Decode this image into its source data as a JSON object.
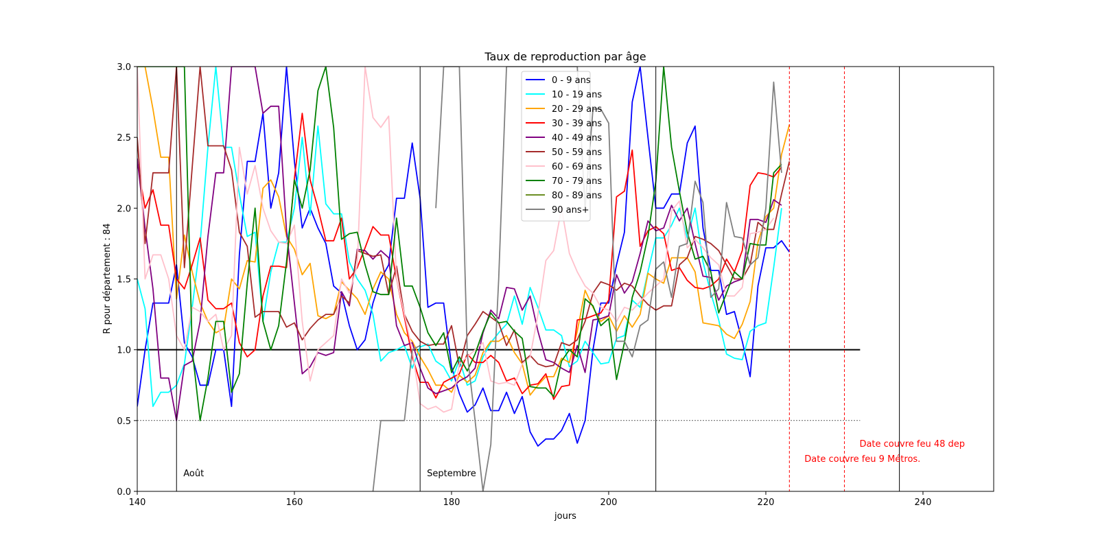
{
  "chart_data": {
    "type": "line",
    "title": "Taux de reproduction par âge",
    "xlabel": "jours",
    "ylabel": "R pour département : 84",
    "xlim": [
      140,
      249
    ],
    "ylim": [
      0,
      3
    ],
    "xticks": [
      "140",
      "160",
      "180",
      "200",
      "220",
      "240"
    ],
    "yticks": [
      "0.0",
      "0.5",
      "1.0",
      "1.5",
      "2.0",
      "2.5",
      "3.0"
    ],
    "grid": false,
    "legend_position": "top-center",
    "x_start": 140,
    "reference_lines": [
      {
        "y": 1.0,
        "style": "solid",
        "color": "#000000",
        "x_end": 232
      },
      {
        "y": 0.5,
        "style": "dotted",
        "color": "#000000",
        "x_end": 232
      }
    ],
    "vertical_lines": [
      {
        "x": 145,
        "color": "#000000",
        "style": "solid",
        "label": "Août"
      },
      {
        "x": 176,
        "color": "#000000",
        "style": "solid",
        "label": "Septembre"
      },
      {
        "x": 206,
        "color": "#000000",
        "style": "solid",
        "label": ""
      },
      {
        "x": 237,
        "color": "#000000",
        "style": "solid",
        "label": ""
      },
      {
        "x": 223,
        "color": "#ff0000",
        "style": "dashed",
        "label": "Date couvre feu 9 Métros."
      },
      {
        "x": 230,
        "color": "#ff0000",
        "style": "dashed",
        "label": "Date couvre feu 48 dep"
      }
    ],
    "series": [
      {
        "name": " 0 - 9 ans",
        "color": "#0000ff",
        "values": [
          0.6,
          1.0,
          1.33,
          1.33,
          1.33,
          1.6,
          1.05,
          0.95,
          0.75,
          0.75,
          1.0,
          1.0,
          0.6,
          1.67,
          2.33,
          2.33,
          2.67,
          2.0,
          2.25,
          3.0,
          2.33,
          1.86,
          2.0,
          1.86,
          1.75,
          1.45,
          1.4,
          1.17,
          1.0,
          1.07,
          1.33,
          1.5,
          1.6,
          2.07,
          2.07,
          2.46,
          2.07,
          1.3,
          1.33,
          1.33,
          0.88,
          0.69,
          0.56,
          0.61,
          0.73,
          0.57,
          0.57,
          0.7,
          0.55,
          0.67,
          0.42,
          0.32,
          0.37,
          0.37,
          0.43,
          0.55,
          0.34,
          0.5,
          1.0,
          1.33,
          1.33,
          1.6,
          1.83,
          2.75,
          3.0,
          2.5,
          2.0,
          2.0,
          2.1,
          2.1,
          2.46,
          2.58,
          1.86,
          1.56,
          1.56,
          1.25,
          1.27,
          1.06,
          0.81,
          1.45,
          1.72,
          1.72,
          1.77,
          1.69
        ]
      },
      {
        "name": "10 - 19 ans",
        "color": "#00ffff",
        "values": [
          1.5,
          1.29,
          0.6,
          0.7,
          0.7,
          0.75,
          0.9,
          1.3,
          1.75,
          2.43,
          3.0,
          2.43,
          2.43,
          2.1,
          1.8,
          1.83,
          1.2,
          1.55,
          1.76,
          1.76,
          2.0,
          2.5,
          1.95,
          2.58,
          2.03,
          1.96,
          1.96,
          1.62,
          1.5,
          1.42,
          1.25,
          0.92,
          0.98,
          1.0,
          1.03,
          0.87,
          1.02,
          1.04,
          0.92,
          0.88,
          0.78,
          0.93,
          0.75,
          0.78,
          0.95,
          1.05,
          1.12,
          1.18,
          1.38,
          1.18,
          1.44,
          1.3,
          1.14,
          1.14,
          1.1,
          0.88,
          0.92,
          1.06,
          0.98,
          0.9,
          0.91,
          1.08,
          1.1,
          1.35,
          1.3,
          1.55,
          1.79,
          1.79,
          1.88,
          2.0,
          1.79,
          2.0,
          1.62,
          1.4,
          1.21,
          0.97,
          0.94,
          0.93,
          1.13,
          1.17,
          1.19,
          1.58,
          2.0
        ]
      },
      {
        "name": "20 - 29 ans",
        "color": "#ffa500",
        "values": [
          3.0,
          3.0,
          2.7,
          2.36,
          2.36,
          1.36,
          1.81,
          1.55,
          1.33,
          1.2,
          1.12,
          1.15,
          1.5,
          1.43,
          1.63,
          1.62,
          2.14,
          2.2,
          2.08,
          1.8,
          1.71,
          1.53,
          1.61,
          1.24,
          1.22,
          1.25,
          1.48,
          1.42,
          1.36,
          1.25,
          1.43,
          1.55,
          1.5,
          1.25,
          1.12,
          1.06,
          0.95,
          0.86,
          0.75,
          0.75,
          0.7,
          0.82,
          0.77,
          0.82,
          0.98,
          1.06,
          1.06,
          1.1,
          0.98,
          0.9,
          0.68,
          0.75,
          0.81,
          0.81,
          0.94,
          0.91,
          1.13,
          1.42,
          1.3,
          1.2,
          1.24,
          1.13,
          1.24,
          1.16,
          1.25,
          1.54,
          1.5,
          1.47,
          1.65,
          1.65,
          1.65,
          1.55,
          1.19,
          1.18,
          1.17,
          1.11,
          1.08,
          1.18,
          1.34,
          1.76,
          1.94,
          2.0,
          2.38,
          2.59
        ]
      },
      {
        "name": "30 - 39 ans",
        "color": "#ff0000",
        "values": [
          2.33,
          2.0,
          2.13,
          1.88,
          1.88,
          1.5,
          1.43,
          1.6,
          1.79,
          1.35,
          1.29,
          1.29,
          1.33,
          1.05,
          0.95,
          1.0,
          1.38,
          1.59,
          1.59,
          1.58,
          2.21,
          2.67,
          2.2,
          2.0,
          1.77,
          1.77,
          1.93,
          1.5,
          1.58,
          1.72,
          1.87,
          1.81,
          1.81,
          1.5,
          1.23,
          0.95,
          0.77,
          0.77,
          0.66,
          0.77,
          0.8,
          0.83,
          0.97,
          0.91,
          0.91,
          0.96,
          0.91,
          0.78,
          0.8,
          0.69,
          0.75,
          0.76,
          0.83,
          0.65,
          0.74,
          0.75,
          1.21,
          1.22,
          1.24,
          1.26,
          1.35,
          2.08,
          2.12,
          2.41,
          1.73,
          1.84,
          1.87,
          1.82,
          1.56,
          1.58,
          1.49,
          1.44,
          1.43,
          1.45,
          1.5,
          1.64,
          1.55,
          1.7,
          2.16,
          2.25,
          2.24,
          2.22,
          2.29
        ]
      },
      {
        "name": "40 - 49 ans",
        "color": "#800080",
        "values": [
          2.35,
          1.86,
          1.43,
          0.8,
          0.8,
          0.5,
          0.89,
          0.92,
          1.2,
          1.8,
          2.25,
          2.25,
          3.0,
          3.0,
          3.0,
          3.0,
          2.67,
          2.72,
          2.72,
          1.84,
          1.33,
          0.83,
          0.88,
          0.98,
          0.96,
          0.98,
          1.41,
          1.31,
          1.71,
          1.7,
          1.64,
          1.7,
          1.65,
          1.17,
          1.03,
          1.05,
          0.87,
          0.73,
          0.69,
          0.71,
          0.73,
          0.78,
          0.81,
          0.87,
          1.12,
          1.28,
          1.22,
          1.44,
          1.43,
          1.28,
          1.38,
          1.13,
          0.93,
          0.91,
          0.87,
          0.84,
          1.03,
          0.84,
          1.21,
          1.22,
          1.24,
          1.53,
          1.4,
          1.48,
          1.68,
          1.91,
          1.84,
          1.86,
          2.02,
          1.91,
          2.0,
          1.75,
          1.52,
          1.51,
          1.35,
          1.45,
          1.48,
          1.5,
          1.92,
          1.92,
          1.9,
          2.06,
          2.02
        ]
      },
      {
        "name": "50 - 59 ans",
        "color": "#a52a2a",
        "values": [
          2.5,
          1.75,
          2.25,
          2.25,
          2.25,
          3.0,
          1.58,
          2.29,
          3.0,
          2.44,
          2.44,
          2.44,
          2.27,
          1.83,
          1.73,
          1.23,
          1.27,
          1.27,
          1.27,
          1.16,
          1.19,
          1.07,
          1.15,
          1.21,
          1.25,
          1.25,
          1.38,
          1.33,
          1.7,
          1.68,
          1.66,
          1.67,
          1.39,
          1.59,
          1.25,
          1.13,
          1.06,
          1.03,
          1.04,
          1.04,
          1.17,
          0.88,
          1.1,
          1.18,
          1.27,
          1.23,
          1.19,
          1.03,
          1.14,
          0.91,
          0.96,
          0.9,
          0.88,
          0.89,
          1.05,
          1.03,
          1.07,
          1.2,
          1.4,
          1.48,
          1.46,
          1.42,
          1.47,
          1.45,
          1.38,
          1.32,
          1.28,
          1.31,
          1.31,
          1.6,
          1.65,
          1.8,
          1.78,
          1.75,
          1.7,
          1.6,
          1.5,
          1.5,
          1.6,
          1.9,
          1.85,
          1.85,
          2.1,
          2.33
        ]
      },
      {
        "name": "60 - 69 ans",
        "color": "#ffc0cb",
        "values": [
          3.0,
          1.5,
          1.67,
          1.67,
          1.5,
          1.1,
          1.0,
          1.3,
          1.27,
          1.2,
          1.25,
          1.0,
          1.1,
          2.43,
          2.1,
          2.3,
          2.0,
          1.84,
          1.76,
          1.75,
          1.88,
          1.2,
          0.78,
          1.0,
          1.05,
          1.1,
          1.5,
          1.4,
          1.6,
          3.0,
          2.64,
          2.57,
          2.65,
          1.5,
          1.25,
          1.0,
          0.62,
          0.58,
          0.6,
          0.56,
          0.58,
          0.9,
          0.95,
          1.0,
          1.05,
          0.78,
          0.76,
          0.77,
          0.75,
          0.9,
          0.95,
          1.25,
          1.63,
          1.7,
          2.0,
          1.68,
          1.55,
          1.45,
          1.4,
          1.3,
          1.28,
          1.2,
          1.3,
          1.28,
          1.34,
          1.4,
          1.45,
          1.5,
          1.98,
          2.05,
          1.72,
          1.78,
          1.72,
          1.65,
          1.6,
          1.38,
          1.38,
          1.44,
          1.82,
          1.83,
          1.85,
          1.93
        ]
      },
      {
        "name": "70 - 79 ans",
        "color": "#008000",
        "values": [
          3.0,
          3.0,
          3.0,
          3.0,
          3.0,
          3.0,
          3.0,
          1.0,
          0.5,
          0.8,
          1.2,
          1.2,
          0.7,
          0.83,
          1.47,
          2.0,
          1.2,
          1.0,
          1.17,
          1.62,
          2.2,
          2.0,
          2.27,
          2.83,
          3.0,
          2.57,
          1.78,
          1.82,
          1.83,
          1.6,
          1.41,
          1.39,
          1.39,
          1.93,
          1.45,
          1.45,
          1.3,
          1.12,
          1.03,
          1.12,
          0.84,
          0.95,
          0.85,
          0.97,
          1.13,
          1.26,
          1.19,
          1.2,
          1.13,
          1.08,
          0.74,
          0.73,
          0.73,
          0.67,
          0.92,
          1.0,
          0.95,
          1.36,
          1.31,
          1.17,
          1.22,
          0.79,
          1.05,
          1.37,
          1.55,
          1.8,
          2.19,
          3.0,
          2.43,
          2.12,
          1.83,
          1.64,
          1.66,
          1.55,
          1.26,
          1.4,
          1.55,
          1.5,
          1.75,
          1.74,
          1.74,
          2.25,
          2.31
        ]
      },
      {
        "name": "80 - 89 ans",
        "color": "#6b8e23",
        "values": []
      },
      {
        "name": "90 ans+",
        "color": "#808080",
        "values": [
          null,
          null,
          null,
          null,
          null,
          null,
          null,
          null,
          null,
          null,
          null,
          null,
          null,
          null,
          null,
          null,
          null,
          null,
          null,
          null,
          null,
          null,
          null,
          null,
          null,
          null,
          null,
          null,
          null,
          null,
          0.0,
          0.5,
          0.5,
          0.5,
          0.5,
          1.0,
          1.03,
          null,
          2.0,
          3.0,
          3.0,
          3.0,
          0.97,
          0.5,
          0.0,
          0.33,
          1.5,
          3.0,
          3.0,
          3.0,
          3.0,
          3.0,
          3.0,
          3.0,
          3.0,
          3.0,
          3.0,
          2.0,
          2.7,
          2.7,
          2.6,
          1.06,
          1.06,
          0.95,
          1.17,
          1.21,
          1.57,
          1.62,
          1.37,
          1.73,
          1.75,
          2.19,
          2.04,
          1.37,
          1.43,
          2.04,
          1.8,
          1.79,
          1.6,
          1.65,
          2.0,
          2.89,
          2.25
        ]
      }
    ]
  }
}
